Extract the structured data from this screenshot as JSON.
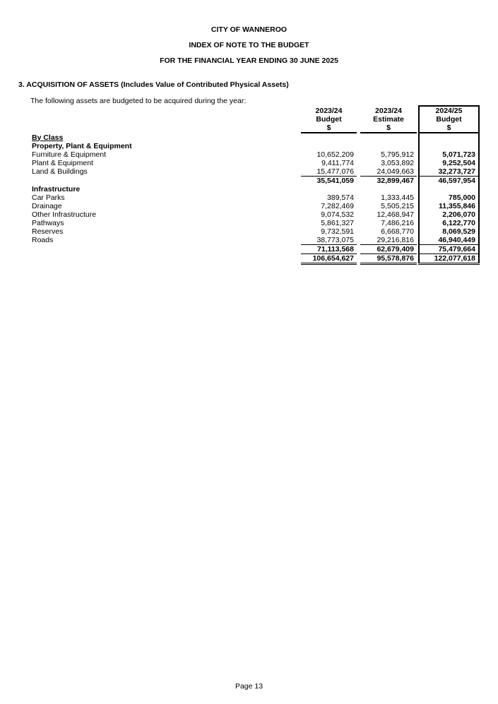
{
  "header": {
    "org": "CITY OF WANNEROO",
    "title": "INDEX OF NOTE TO THE BUDGET",
    "period": "FOR THE FINANCIAL YEAR ENDING 30 JUNE 2025"
  },
  "section": {
    "title": "3.  ACQUISITION OF ASSETS (Includes Value of Contributed Physical Assets)",
    "intro": "The following assets are budgeted to be acquired during the year:"
  },
  "columns": [
    {
      "year": "2023/24",
      "type": "Budget",
      "unit": "$"
    },
    {
      "year": "2023/24",
      "type": "Estimate",
      "unit": "$"
    },
    {
      "year": "2024/25",
      "type": "Budget",
      "unit": "$"
    }
  ],
  "by_class": "By Class",
  "ppe": {
    "title": "Property, Plant & Equipment",
    "rows": [
      {
        "label": "Furniture & Equipment",
        "v": [
          "10,652,209",
          "5,795,912",
          "5,071,723"
        ]
      },
      {
        "label": "Plant & Equipment",
        "v": [
          "9,411,774",
          "3,053,892",
          "9,252,504"
        ]
      },
      {
        "label": "Land & Buildings",
        "v": [
          "15,477,076",
          "24,049,663",
          "32,273,727"
        ]
      }
    ],
    "subtotal": [
      "35,541,059",
      "32,899,467",
      "46,597,954"
    ]
  },
  "infra": {
    "title": "Infrastructure",
    "rows": [
      {
        "label": "Car Parks",
        "v": [
          "389,574",
          "1,333,445",
          "785,000"
        ]
      },
      {
        "label": "Drainage",
        "v": [
          "7,282,469",
          "5,505,215",
          "11,355,846"
        ]
      },
      {
        "label": "Other Infrastructure",
        "v": [
          "9,074,532",
          "12,468,947",
          "2,206,070"
        ]
      },
      {
        "label": "Pathways",
        "v": [
          "5,861,327",
          "7,486,216",
          "6,122,770"
        ]
      },
      {
        "label": "Reserves",
        "v": [
          "9,732,591",
          "6,668,770",
          "8,069,529"
        ]
      },
      {
        "label": "Roads",
        "v": [
          "38,773,075",
          "29,216,816",
          "46,940,449"
        ]
      }
    ],
    "subtotal": [
      "71,113,568",
      "62,679,409",
      "75,479,664"
    ]
  },
  "total": [
    "106,654,627",
    "95,578,876",
    "122,077,618"
  ],
  "footer": {
    "page": "Page 13"
  }
}
